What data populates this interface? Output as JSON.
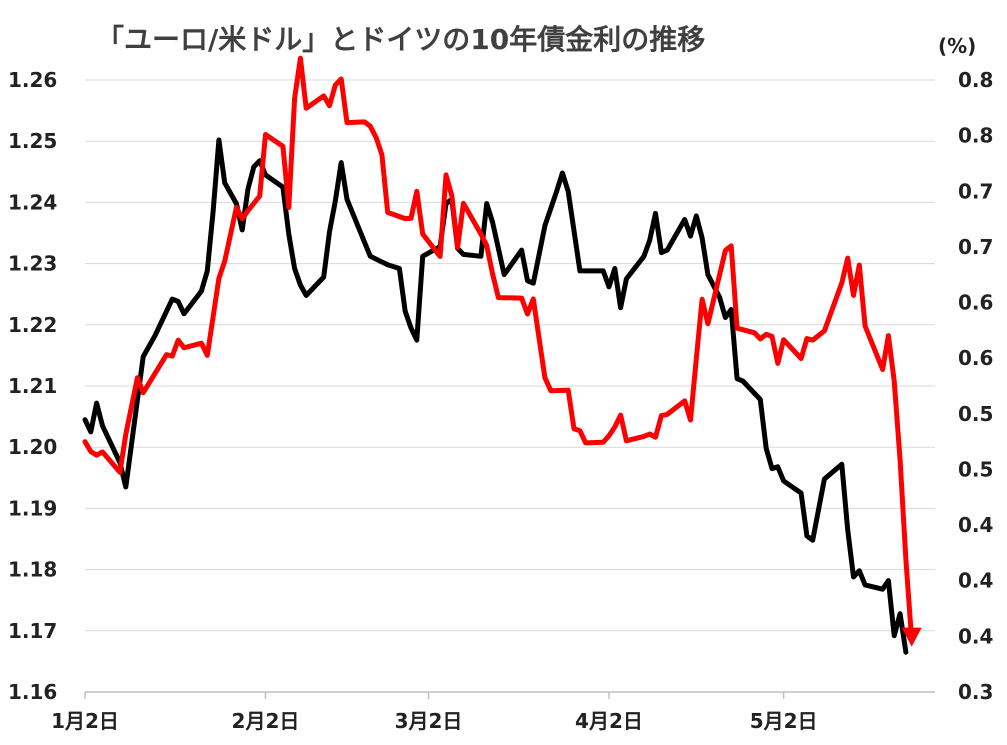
{
  "title": "「ユーロ/米ドル」とドイツの10年債金利の推移",
  "right_unit": "(%)",
  "chart_data": {
    "type": "line",
    "title": "「ユーロ/米ドル」とドイツの10年債金利の推移",
    "xlabel": "",
    "ylabel": "",
    "ylim": [
      1.16,
      1.26
    ],
    "y2lim": [
      0.3,
      0.8
    ],
    "yticks": [
      "1.16",
      "1.17",
      "1.18",
      "1.19",
      "1.20",
      "1.21",
      "1.22",
      "1.23",
      "1.24",
      "1.25",
      "1.26"
    ],
    "y2ticks": [
      "0.3",
      "0.4",
      "0.4",
      "0.4",
      "0.5",
      "0.5",
      "0.6",
      "0.6",
      "0.7",
      "0.7",
      "0.8",
      "0.8"
    ],
    "xticks": [
      {
        "label": "1月2日",
        "x": 0
      },
      {
        "label": "2月2日",
        "x": 31
      },
      {
        "label": "3月2日",
        "x": 59
      },
      {
        "label": "4月2日",
        "x": 90
      },
      {
        "label": "5月2日",
        "x": 120
      }
    ],
    "xlim": [
      0,
      146
    ],
    "grid": true,
    "series": [
      {
        "color": "#000000",
        "axis": "left",
        "points": [
          [
            0,
            1.2045
          ],
          [
            1,
            1.2025
          ],
          [
            2,
            1.2072
          ],
          [
            3,
            1.2035
          ],
          [
            6,
            1.1975
          ],
          [
            7,
            1.1935
          ],
          [
            10,
            1.2148
          ],
          [
            12,
            1.2182
          ],
          [
            15,
            1.2242
          ],
          [
            16,
            1.2238
          ],
          [
            17,
            1.2218
          ],
          [
            20,
            1.2255
          ],
          [
            21,
            1.2288
          ],
          [
            22,
            1.2385
          ],
          [
            23,
            1.2502
          ],
          [
            24,
            1.2432
          ],
          [
            26,
            1.2398
          ],
          [
            27,
            1.2355
          ],
          [
            28,
            1.2422
          ],
          [
            29,
            1.2458
          ],
          [
            30,
            1.2468
          ],
          [
            31,
            1.2445
          ],
          [
            34,
            1.2425
          ],
          [
            35,
            1.2348
          ],
          [
            36,
            1.2292
          ],
          [
            37,
            1.2265
          ],
          [
            38,
            1.2248
          ],
          [
            41,
            1.2278
          ],
          [
            42,
            1.2352
          ],
          [
            43,
            1.2402
          ],
          [
            44,
            1.2465
          ],
          [
            45,
            1.2405
          ],
          [
            48,
            1.2335
          ],
          [
            49,
            1.2312
          ],
          [
            52,
            1.2298
          ],
          [
            54,
            1.2292
          ],
          [
            55,
            1.2222
          ],
          [
            56,
            1.2195
          ],
          [
            57,
            1.2175
          ],
          [
            58,
            1.2312
          ],
          [
            61,
            1.2328
          ],
          [
            62,
            1.2398
          ],
          [
            63,
            1.2405
          ],
          [
            64,
            1.2325
          ],
          [
            65,
            1.2315
          ],
          [
            68,
            1.2312
          ],
          [
            69,
            1.2398
          ],
          [
            70,
            1.2368
          ],
          [
            72,
            1.2282
          ],
          [
            75,
            1.2322
          ],
          [
            76,
            1.2272
          ],
          [
            77,
            1.2268
          ],
          [
            79,
            1.2362
          ],
          [
            81,
            1.2418
          ],
          [
            82,
            1.2448
          ],
          [
            83,
            1.2418
          ],
          [
            85,
            1.2288
          ],
          [
            89,
            1.2288
          ],
          [
            90,
            1.2262
          ],
          [
            91,
            1.2292
          ],
          [
            92,
            1.2228
          ],
          [
            93,
            1.2275
          ],
          [
            96,
            1.2312
          ],
          [
            97,
            1.2338
          ],
          [
            98,
            1.2382
          ],
          [
            99,
            1.2318
          ],
          [
            100,
            1.2322
          ],
          [
            103,
            1.2372
          ],
          [
            104,
            1.2345
          ],
          [
            105,
            1.2378
          ],
          [
            106,
            1.2342
          ],
          [
            107,
            1.2282
          ],
          [
            109,
            1.2245
          ],
          [
            110,
            1.2212
          ],
          [
            111,
            1.2225
          ],
          [
            112,
            1.2112
          ],
          [
            113,
            1.2108
          ],
          [
            116,
            1.2078
          ],
          [
            117,
            1.1998
          ],
          [
            118,
            1.1965
          ],
          [
            119,
            1.1968
          ],
          [
            120,
            1.1945
          ],
          [
            123,
            1.1925
          ],
          [
            124,
            1.1855
          ],
          [
            125,
            1.1848
          ],
          [
            127,
            1.1948
          ],
          [
            130,
            1.1972
          ],
          [
            131,
            1.1865
          ],
          [
            132,
            1.1788
          ],
          [
            133,
            1.1798
          ],
          [
            134,
            1.1775
          ],
          [
            137,
            1.1768
          ],
          [
            138,
            1.1782
          ],
          [
            139,
            1.1692
          ],
          [
            140,
            1.1728
          ],
          [
            141,
            1.1665
          ]
        ]
      },
      {
        "color": "#ff0000",
        "axis": "right",
        "points": [
          [
            0,
            0.5045
          ],
          [
            1,
            0.4965
          ],
          [
            2,
            0.4935
          ],
          [
            3,
            0.4962
          ],
          [
            6,
            0.4795
          ],
          [
            7,
            0.5105
          ],
          [
            9,
            0.5568
          ],
          [
            10,
            0.5445
          ],
          [
            14,
            0.5756
          ],
          [
            15,
            0.5745
          ],
          [
            16,
            0.5875
          ],
          [
            17,
            0.5812
          ],
          [
            20,
            0.585
          ],
          [
            21,
            0.575
          ],
          [
            23,
            0.638
          ],
          [
            24,
            0.652
          ],
          [
            26,
            0.6958
          ],
          [
            27,
            0.6868
          ],
          [
            28,
            0.6932
          ],
          [
            30,
            0.7052
          ],
          [
            31,
            0.7555
          ],
          [
            34,
            0.7458
          ],
          [
            35,
            0.6958
          ],
          [
            36,
            0.785
          ],
          [
            37,
            0.8178
          ],
          [
            38,
            0.777
          ],
          [
            41,
            0.787
          ],
          [
            42,
            0.779
          ],
          [
            43,
            0.7958
          ],
          [
            44,
            0.8008
          ],
          [
            45,
            0.7652
          ],
          [
            48,
            0.7658
          ],
          [
            49,
            0.7622
          ],
          [
            50,
            0.753
          ],
          [
            51,
            0.739
          ],
          [
            52,
            0.6918
          ],
          [
            55,
            0.6868
          ],
          [
            56,
            0.687
          ],
          [
            57,
            0.709
          ],
          [
            58,
            0.6742
          ],
          [
            61,
            0.6558
          ],
          [
            62,
            0.7225
          ],
          [
            63,
            0.7055
          ],
          [
            64,
            0.6632
          ],
          [
            65,
            0.6992
          ],
          [
            68,
            0.6742
          ],
          [
            69,
            0.6648
          ],
          [
            70,
            0.6418
          ],
          [
            71,
            0.6222
          ],
          [
            75,
            0.6218
          ],
          [
            76,
            0.6088
          ],
          [
            77,
            0.6212
          ],
          [
            79,
            0.5568
          ],
          [
            80,
            0.5462
          ],
          [
            83,
            0.5465
          ],
          [
            84,
            0.515
          ],
          [
            85,
            0.5135
          ],
          [
            86,
            0.5035
          ],
          [
            89,
            0.504
          ],
          [
            90,
            0.5095
          ],
          [
            91,
            0.5165
          ],
          [
            92,
            0.5262
          ],
          [
            93,
            0.5052
          ],
          [
            96,
            0.5088
          ],
          [
            97,
            0.5108
          ],
          [
            98,
            0.5082
          ],
          [
            99,
            0.5258
          ],
          [
            100,
            0.5268
          ],
          [
            103,
            0.5378
          ],
          [
            104,
            0.5222
          ],
          [
            105,
            0.5722
          ],
          [
            106,
            0.6208
          ],
          [
            107,
            0.6008
          ],
          [
            110,
            0.6608
          ],
          [
            111,
            0.6645
          ],
          [
            112,
            0.5972
          ],
          [
            115,
            0.5935
          ],
          [
            116,
            0.5885
          ],
          [
            117,
            0.5922
          ],
          [
            118,
            0.5905
          ],
          [
            119,
            0.5685
          ],
          [
            120,
            0.5878
          ],
          [
            123,
            0.5725
          ],
          [
            124,
            0.5888
          ],
          [
            125,
            0.5875
          ],
          [
            127,
            0.595
          ],
          [
            130,
            0.6342
          ],
          [
            131,
            0.6545
          ],
          [
            132,
            0.624
          ],
          [
            133,
            0.6488
          ],
          [
            134,
            0.599
          ],
          [
            137,
            0.5635
          ],
          [
            138,
            0.5912
          ],
          [
            139,
            0.5542
          ],
          [
            140,
            0.4895
          ],
          [
            141,
            0.4082
          ],
          [
            142,
            0.342
          ]
        ]
      }
    ]
  }
}
